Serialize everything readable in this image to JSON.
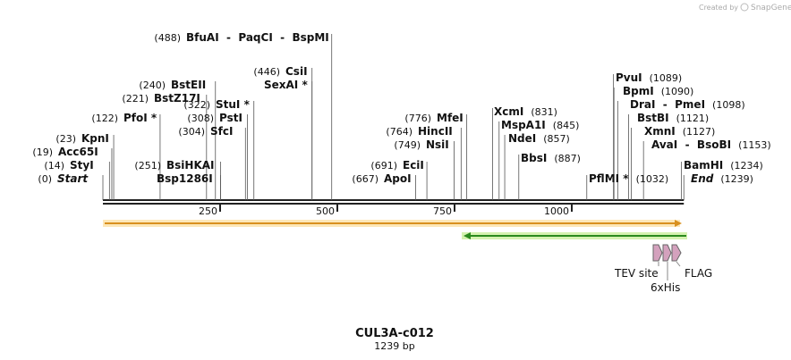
{
  "header": {
    "credit": "Created by",
    "brand": "SnapGene"
  },
  "map": {
    "name": "CUL3A-c012",
    "length_label": "1239 bp",
    "length": 1239,
    "ruler": [
      250,
      500,
      750,
      1000
    ],
    "sites": [
      {
        "names": "BfuAI  -  PaqCI  -  BspMI",
        "pos": 488,
        "pos_label": "(488)"
      },
      {
        "names": "CsiI",
        "pos": 446,
        "pos_label": "(446)"
      },
      {
        "names": "SexAI *",
        "pos": 446
      },
      {
        "names": "BstEII",
        "pos": 240,
        "pos_label": "(240)"
      },
      {
        "names": "BstZ17I",
        "pos": 221,
        "pos_label": "(221)"
      },
      {
        "names": "StuI *",
        "pos": 322,
        "pos_label": "(322)"
      },
      {
        "names": "PfoI *",
        "pos": 122,
        "pos_label": "(122)"
      },
      {
        "names": "PstI",
        "pos": 308,
        "pos_label": "(308)"
      },
      {
        "names": "SfcI",
        "pos": 304,
        "pos_label": "(304)"
      },
      {
        "names": "KpnI",
        "pos": 23,
        "pos_label": "(23)"
      },
      {
        "names": "Acc65I",
        "pos": 19,
        "pos_label": "(19)"
      },
      {
        "names": "StyI",
        "pos": 14,
        "pos_label": "(14)"
      },
      {
        "names": "Start",
        "pos": 0,
        "pos_label": "(0)"
      },
      {
        "names": "BsiHKAI",
        "pos": 251,
        "pos_label": "(251)"
      },
      {
        "names": "Bsp1286I",
        "pos": 251
      },
      {
        "names": "MfeI",
        "pos": 776,
        "pos_label": "(776)"
      },
      {
        "names": "HincII",
        "pos": 764,
        "pos_label": "(764)"
      },
      {
        "names": "NsiI",
        "pos": 749,
        "pos_label": "(749)"
      },
      {
        "names": "EciI",
        "pos": 691,
        "pos_label": "(691)"
      },
      {
        "names": "ApoI",
        "pos": 667,
        "pos_label": "(667)"
      },
      {
        "names": "XcmI",
        "pos": 831,
        "pos_label": "(831)"
      },
      {
        "names": "MspA1I",
        "pos": 845,
        "pos_label": "(845)"
      },
      {
        "names": "NdeI",
        "pos": 857,
        "pos_label": "(857)"
      },
      {
        "names": "BbsI",
        "pos": 887,
        "pos_label": "(887)"
      },
      {
        "names": "PvuI",
        "pos": 1089,
        "pos_label": "(1089)"
      },
      {
        "names": "BpmI",
        "pos": 1090,
        "pos_label": "(1090)"
      },
      {
        "names": "DraI  -  PmeI",
        "pos": 1098,
        "pos_label": "(1098)"
      },
      {
        "names": "BstBI",
        "pos": 1121,
        "pos_label": "(1121)"
      },
      {
        "names": "XmnI",
        "pos": 1127,
        "pos_label": "(1127)"
      },
      {
        "names": "AvaI  -  BsoBI",
        "pos": 1153,
        "pos_label": "(1153)"
      },
      {
        "names": "BamHI",
        "pos": 1234,
        "pos_label": "(1234)"
      },
      {
        "names": "End",
        "pos": 1239,
        "pos_label": "(1239)"
      },
      {
        "names": "PflMI *",
        "pos": 1032,
        "pos_label": "(1032)"
      }
    ],
    "features": [
      {
        "name": "TEV site"
      },
      {
        "name": "6xHis"
      },
      {
        "name": "FLAG"
      }
    ]
  }
}
